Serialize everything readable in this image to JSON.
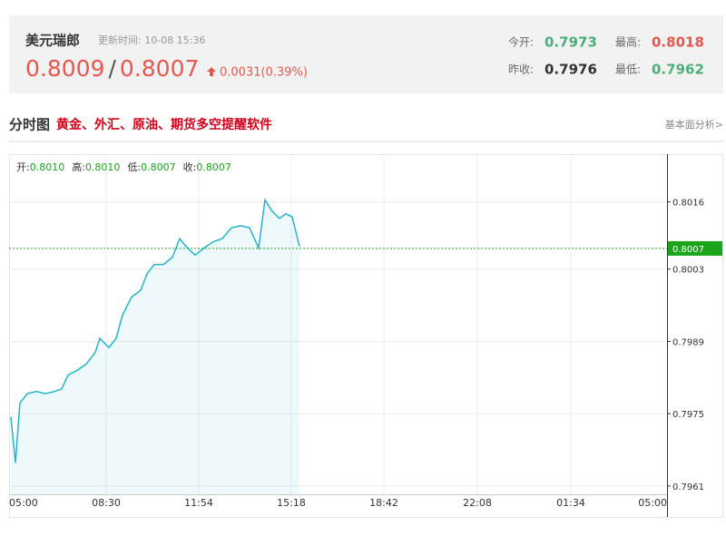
{
  "header": {
    "title": "美元瑞郎",
    "update_time": "更新时间: 10-08 15:36",
    "bid": "0.8009",
    "separator": "/",
    "ask": "0.8007",
    "change": "0.0031(0.39%)",
    "stats": [
      {
        "label": "今开:",
        "value": "0.7973"
      },
      {
        "label": "最高:",
        "value": "0.8018"
      },
      {
        "label": "昨收:",
        "value": "0.7976"
      },
      {
        "label": "最低:",
        "value": "0.7962"
      }
    ]
  },
  "section": {
    "title": "分时图",
    "promo": "黄金、外汇、原油、期货多空提醒软件",
    "link": "基本面分析>"
  },
  "chart_data": {
    "type": "line",
    "summary": [
      {
        "label": "开:",
        "value": "0.8010"
      },
      {
        "label": "高:",
        "value": "0.8010"
      },
      {
        "label": "低:",
        "value": "0.8007"
      },
      {
        "label": "收:",
        "value": "0.8007"
      }
    ],
    "x": [
      0,
      10,
      20,
      36,
      56,
      76,
      96,
      112,
      126,
      146,
      166,
      186,
      196,
      216,
      232,
      246,
      266,
      286,
      300,
      316,
      336,
      356,
      372,
      386,
      406,
      426,
      446,
      466,
      486,
      506,
      526,
      546,
      560,
      576,
      592,
      606,
      620,
      636
    ],
    "series": [
      {
        "color": "#25b3cc",
        "values": [
          0.79744,
          0.79655,
          0.79771,
          0.79789,
          0.79793,
          0.79789,
          0.79793,
          0.79798,
          0.79825,
          0.79834,
          0.79846,
          0.79869,
          0.79896,
          0.79878,
          0.79896,
          0.79941,
          0.79976,
          0.79989,
          0.80021,
          0.80039,
          0.80039,
          0.80053,
          0.80089,
          0.80074,
          0.80057,
          0.80071,
          0.80083,
          0.80089,
          0.8011,
          0.80114,
          0.8011,
          0.80071,
          0.80164,
          0.80142,
          0.80128,
          0.80137,
          0.80131,
          0.80074
        ]
      }
    ],
    "last": 0.8007,
    "last_color": "#1aa51a",
    "xlim": [
      0,
      1440
    ],
    "xticks": [
      {
        "value": 0,
        "label": "05:00"
      },
      {
        "value": 210,
        "label": "08:30"
      },
      {
        "value": 414,
        "label": "11:54"
      },
      {
        "value": 618,
        "label": "15:18"
      },
      {
        "value": 822,
        "label": "18:42"
      },
      {
        "value": 1028,
        "label": "22:08"
      },
      {
        "value": 1234,
        "label": "01:34"
      },
      {
        "value": 1440,
        "label": "05:00"
      }
    ],
    "ylim": [
      0.79594,
      0.80249
    ],
    "yticks": [
      0.7961,
      0.7975,
      0.7989,
      0.8003,
      0.8016
    ],
    "grid": true
  }
}
